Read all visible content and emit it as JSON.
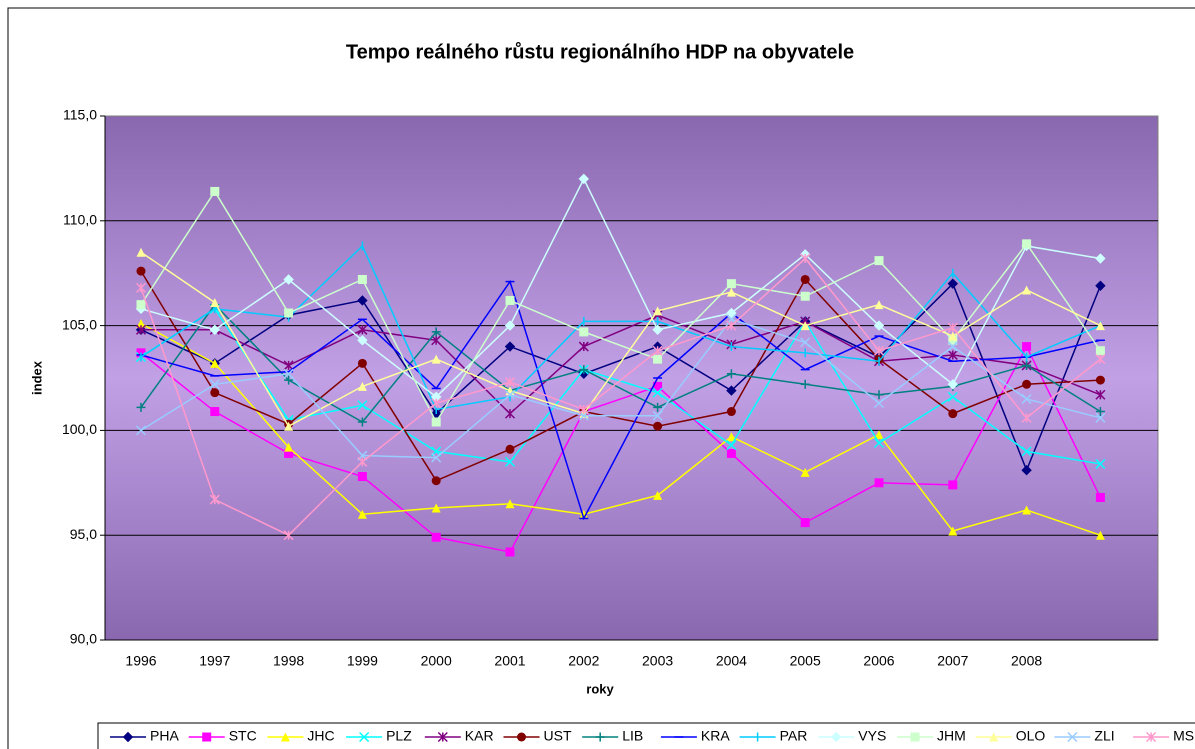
{
  "chart_data": {
    "type": "line",
    "title": "Tempo reálného růstu regionálního HDP na obyvatele",
    "x_label": "roky",
    "y_label": "index",
    "categories": [
      "1996",
      "1997",
      "1998",
      "1999",
      "2000",
      "2001",
      "2002",
      "2003",
      "2004",
      "2005",
      "2006",
      "2007",
      "2008",
      null
    ],
    "ylim": [
      90,
      115
    ],
    "yticks": [
      {
        "value": 90,
        "label": "90,0"
      },
      {
        "value": 95,
        "label": "95,0"
      },
      {
        "value": 100,
        "label": "100,0"
      },
      {
        "value": 105,
        "label": "105,0"
      },
      {
        "value": 110,
        "label": "110,0"
      },
      {
        "value": 115,
        "label": "115,0"
      }
    ],
    "grid": true,
    "legend": "bottom",
    "series": [
      {
        "name": "PHA",
        "color": "#000080",
        "marker": "diamond",
        "values": [
          104.8,
          103.2,
          105.5,
          106.2,
          100.8,
          104.0,
          102.7,
          104.0,
          101.9,
          105.2,
          103.5,
          107.0,
          98.1,
          106.9
        ]
      },
      {
        "name": "STC",
        "color": "#ff00ff",
        "marker": "square",
        "values": [
          103.7,
          100.9,
          98.9,
          97.8,
          94.9,
          94.2,
          100.9,
          102.1,
          98.9,
          95.6,
          97.5,
          97.4,
          104.0,
          96.8
        ]
      },
      {
        "name": "JHC",
        "color": "#ffff00",
        "marker": "triangle",
        "values": [
          105.1,
          103.2,
          99.2,
          96.0,
          96.3,
          96.5,
          96.0,
          96.9,
          99.7,
          98.0,
          99.8,
          95.2,
          96.2,
          95.0
        ]
      },
      {
        "name": "PLZ",
        "color": "#00ffff",
        "marker": "x",
        "values": [
          103.5,
          105.8,
          100.5,
          101.2,
          99.0,
          98.5,
          102.9,
          101.8,
          99.3,
          105.2,
          99.4,
          101.6,
          99.0,
          98.4
        ]
      },
      {
        "name": "KAR",
        "color": "#800080",
        "marker": "star",
        "values": [
          104.8,
          104.8,
          103.1,
          104.8,
          104.3,
          100.8,
          104.0,
          105.5,
          104.1,
          105.2,
          103.3,
          103.6,
          103.1,
          101.7
        ]
      },
      {
        "name": "UST",
        "color": "#800000",
        "marker": "circle",
        "values": [
          107.6,
          101.8,
          100.3,
          103.2,
          97.6,
          99.1,
          100.9,
          100.2,
          100.9,
          107.2,
          103.4,
          100.8,
          102.2,
          102.4
        ]
      },
      {
        "name": "LIB",
        "color": "#008080",
        "marker": "plus",
        "values": [
          101.1,
          106.0,
          102.4,
          100.4,
          104.7,
          101.9,
          102.9,
          101.1,
          102.7,
          102.2,
          101.7,
          102.1,
          103.1,
          100.9
        ]
      },
      {
        "name": "KRA",
        "color": "#0000ff",
        "marker": "dash",
        "values": [
          103.6,
          102.6,
          102.8,
          105.3,
          102.0,
          107.1,
          95.8,
          102.5,
          105.6,
          102.9,
          104.5,
          103.3,
          103.5,
          104.3
        ]
      },
      {
        "name": "PAR",
        "color": "#00ccff",
        "marker": "bar",
        "values": [
          103.5,
          105.8,
          105.4,
          108.8,
          101.0,
          101.6,
          105.2,
          105.2,
          104.0,
          103.7,
          103.3,
          107.5,
          103.5,
          105.0
        ]
      },
      {
        "name": "VYS",
        "color": "#ccffff",
        "marker": "diamond",
        "values": [
          105.8,
          104.8,
          107.2,
          104.3,
          101.6,
          105.0,
          112.0,
          104.8,
          105.6,
          108.4,
          105.0,
          102.2,
          108.8,
          108.2
        ]
      },
      {
        "name": "JHM",
        "color": "#ccffcc",
        "marker": "square",
        "values": [
          106.0,
          111.4,
          105.6,
          107.2,
          100.4,
          106.2,
          104.7,
          103.4,
          107.0,
          106.4,
          108.1,
          104.3,
          108.9,
          103.8
        ]
      },
      {
        "name": "OLO",
        "color": "#ffff99",
        "marker": "triangle",
        "values": [
          108.5,
          106.1,
          100.2,
          102.1,
          103.4,
          101.9,
          100.8,
          105.7,
          106.6,
          105.0,
          106.0,
          104.5,
          106.7,
          105.0
        ]
      },
      {
        "name": "ZLI",
        "color": "#99ccff",
        "marker": "x",
        "values": [
          100.0,
          102.2,
          102.7,
          98.8,
          98.7,
          101.7,
          100.7,
          100.7,
          105.3,
          104.2,
          101.3,
          104.0,
          101.5,
          100.6
        ]
      },
      {
        "name": "MSK",
        "color": "#ff99cc",
        "marker": "star",
        "values": [
          106.8,
          96.7,
          95.0,
          98.5,
          101.3,
          102.3,
          101.0,
          103.8,
          105.0,
          108.2,
          103.8,
          104.9,
          100.6,
          103.4
        ]
      }
    ]
  }
}
